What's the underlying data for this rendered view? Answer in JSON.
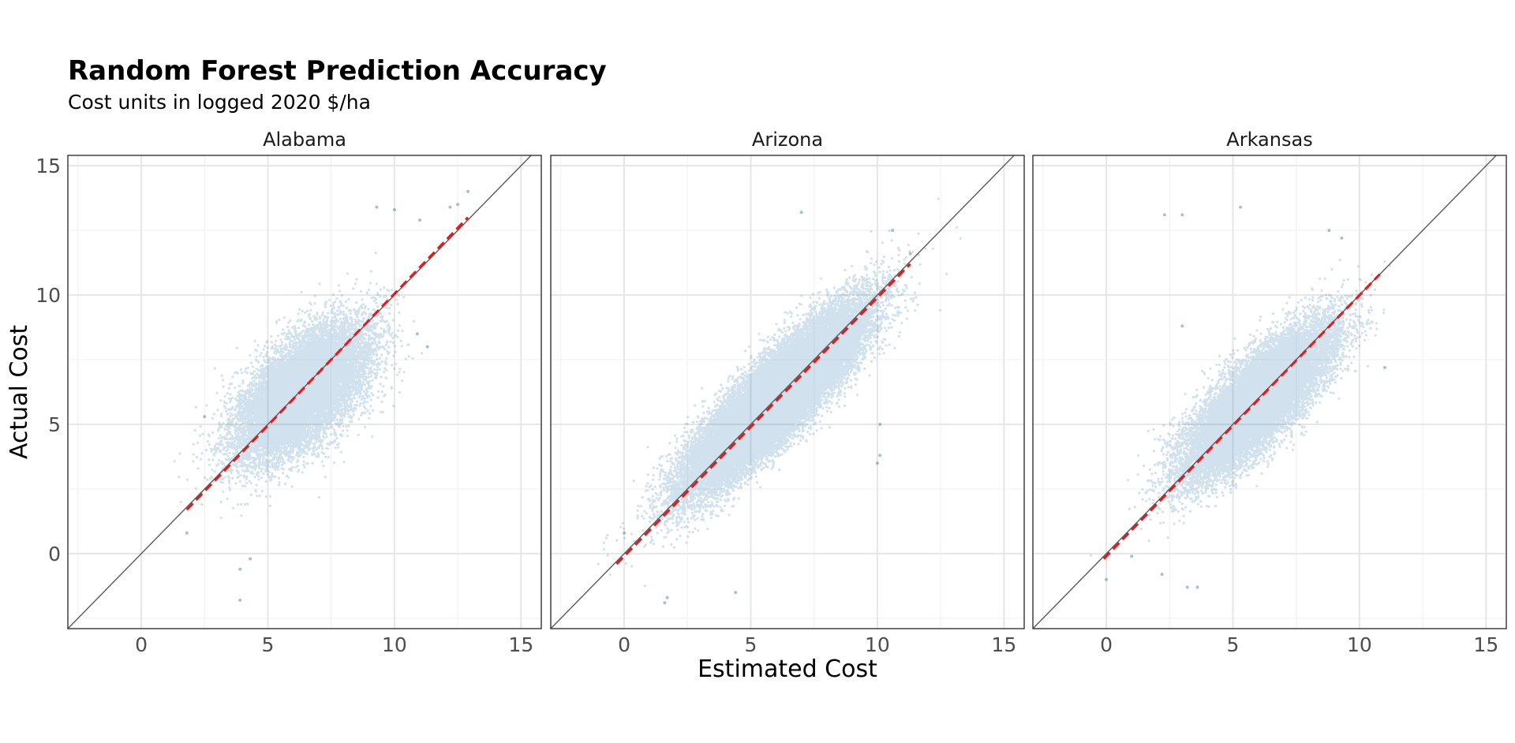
{
  "chart_data": {
    "type": "scatter",
    "title": "Random Forest Prediction Accuracy",
    "subtitle": "Cost units in logged 2020 $/ha",
    "xlabel": "Estimated Cost",
    "ylabel": "Actual Cost",
    "xlim": [
      -2.9,
      15.8
    ],
    "ylim": [
      -2.9,
      15.4
    ],
    "x_ticks": [
      0,
      5,
      10,
      15
    ],
    "y_ticks": [
      0,
      5,
      10,
      15
    ],
    "grid": true,
    "point_color": "#2e77ab",
    "reference_line": {
      "type": "identity",
      "color": "#595959"
    },
    "fit_line_color": "#e41a1c",
    "panels": [
      {
        "name": "Alabama",
        "fit_line": {
          "x": [
            1.8,
            12.9
          ],
          "y": [
            1.7,
            13.0
          ]
        },
        "cloud": {
          "center": [
            6.4,
            6.3
          ],
          "sd_major": 1.6,
          "sd_minor": 0.8,
          "n": 14000
        },
        "outliers": [
          [
            9.3,
            13.4
          ],
          [
            12.2,
            13.4
          ],
          [
            12.5,
            13.5
          ],
          [
            12.9,
            14.0
          ],
          [
            11.0,
            12.9
          ],
          [
            10.9,
            8.5
          ],
          [
            11.3,
            8.0
          ],
          [
            2.5,
            5.3
          ],
          [
            3.9,
            -1.8
          ],
          [
            3.9,
            -0.6
          ],
          [
            1.8,
            0.8
          ],
          [
            4.3,
            -0.2
          ],
          [
            10.0,
            13.3
          ]
        ]
      },
      {
        "name": "Arizona",
        "fit_line": {
          "x": [
            -0.3,
            11.3
          ],
          "y": [
            -0.4,
            11.2
          ]
        },
        "cloud": {
          "center": [
            6.0,
            6.0
          ],
          "sd_major": 2.3,
          "sd_minor": 0.6,
          "n": 30000
        },
        "outliers": [
          [
            7.0,
            13.2
          ],
          [
            0.0,
            0.8
          ],
          [
            4.4,
            -1.5
          ],
          [
            1.6,
            -1.9
          ],
          [
            1.7,
            -1.7
          ],
          [
            10.0,
            3.5
          ],
          [
            10.1,
            3.8
          ],
          [
            10.1,
            5.0
          ],
          [
            11.3,
            11.6
          ],
          [
            10.6,
            12.5
          ]
        ]
      },
      {
        "name": "Arkansas",
        "fit_line": {
          "x": [
            -0.1,
            10.8
          ],
          "y": [
            -0.2,
            10.8
          ]
        },
        "cloud": {
          "center": [
            6.0,
            5.9
          ],
          "sd_major": 1.9,
          "sd_minor": 0.65,
          "n": 18000
        },
        "outliers": [
          [
            2.3,
            13.1
          ],
          [
            3.0,
            13.1
          ],
          [
            5.3,
            13.4
          ],
          [
            9.3,
            12.2
          ],
          [
            8.8,
            12.5
          ],
          [
            11.0,
            7.2
          ],
          [
            0.0,
            -1.0
          ],
          [
            2.2,
            -0.8
          ],
          [
            3.2,
            -1.3
          ],
          [
            3.6,
            -1.3
          ],
          [
            1.0,
            -0.1
          ],
          [
            3.0,
            8.8
          ]
        ]
      }
    ]
  }
}
